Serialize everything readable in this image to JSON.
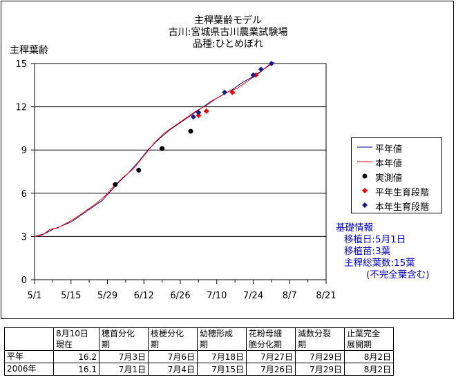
{
  "title_lines": [
    "主稈葉齢モデル",
    "古川:宮城県古川農業試験場",
    "品種:ひとめぼれ"
  ],
  "ylabel": "主稈葉齢",
  "legend": {
    "avg_line": "平年値",
    "cur_line": "本年値",
    "measured": "実測値",
    "avg_stage": "平年生育段階",
    "cur_stage": "本年生育段階"
  },
  "colors": {
    "avg": "#00008b",
    "cur": "#ff0000",
    "measured": "#000000",
    "avg_stage": "#ff0000",
    "cur_stage": "#1a1a8c",
    "info": "#0000cc"
  },
  "info": {
    "heading": "基礎情報",
    "lines": [
      "移植日:5月1日",
      "移植苗:3葉",
      "主稈総葉数:15葉",
      "(不完全葉含む)"
    ]
  },
  "chart_data": {
    "type": "line",
    "x_unit": "days since 5/1",
    "x_ticks": [
      {
        "v": 0,
        "label": "5/1"
      },
      {
        "v": 14,
        "label": "5/15"
      },
      {
        "v": 28,
        "label": "5/29"
      },
      {
        "v": 42,
        "label": "6/12"
      },
      {
        "v": 56,
        "label": "6/26"
      },
      {
        "v": 70,
        "label": "7/10"
      },
      {
        "v": 84,
        "label": "7/24"
      },
      {
        "v": 98,
        "label": "8/7"
      },
      {
        "v": 112,
        "label": "8/21"
      }
    ],
    "xlim": [
      0,
      112
    ],
    "ylim": [
      0,
      15
    ],
    "y_ticks": [
      0,
      3,
      6,
      9,
      12,
      15
    ],
    "grid": "horizontal",
    "legend_position": "right",
    "series": [
      {
        "name": "平年値",
        "x": [
          0,
          4,
          7,
          10,
          14,
          18,
          22,
          26,
          28,
          32,
          36,
          40,
          44,
          48,
          52,
          56,
          60,
          64,
          68,
          72,
          76,
          80,
          84,
          88,
          92
        ],
        "y": [
          3.0,
          3.2,
          3.5,
          3.7,
          4.0,
          4.5,
          5.0,
          5.5,
          5.9,
          6.7,
          7.4,
          8.2,
          9.1,
          9.8,
          10.4,
          10.9,
          11.4,
          11.9,
          12.4,
          12.8,
          13.2,
          13.7,
          14.1,
          14.6,
          15.1
        ]
      },
      {
        "name": "本年値",
        "x": [
          0,
          3,
          6,
          9,
          12,
          15,
          19,
          23,
          27,
          30,
          34,
          38,
          42,
          46,
          50,
          54,
          58,
          62,
          66,
          70,
          74,
          78,
          82,
          86,
          90,
          92
        ],
        "y": [
          3.0,
          3.1,
          3.5,
          3.6,
          3.9,
          4.2,
          4.7,
          5.2,
          5.8,
          6.4,
          7.1,
          7.7,
          8.6,
          9.5,
          10.2,
          10.7,
          11.2,
          11.7,
          12.1,
          12.6,
          13.0,
          13.3,
          13.8,
          14.3,
          14.9,
          15.1
        ]
      }
    ],
    "measured_points": {
      "name": "実測値",
      "x": [
        31,
        40,
        49,
        60
      ],
      "y": [
        6.6,
        7.6,
        9.1,
        10.3
      ]
    },
    "avg_stage_points": {
      "name": "平年生育段階",
      "x": [
        63,
        66,
        76,
        85
      ],
      "y": [
        11.4,
        11.7,
        13.0,
        14.2
      ]
    },
    "cur_stage_points": {
      "name": "本年生育段階",
      "x": [
        61,
        63,
        73,
        84,
        87,
        91
      ],
      "y": [
        11.3,
        11.6,
        13.0,
        14.2,
        14.6,
        15.0
      ]
    }
  },
  "table": {
    "headers": [
      [
        "",
        ""
      ],
      [
        "8月10日",
        "現在"
      ],
      [
        "穂首分化",
        "期"
      ],
      [
        "枝梗分化",
        "期"
      ],
      [
        "幼穂形成",
        "期"
      ],
      [
        "花粉母細",
        "胞分化期"
      ],
      [
        "減数分裂",
        "期"
      ],
      [
        "止葉完全",
        "展開期"
      ]
    ],
    "rows": [
      [
        "平年",
        "16.2",
        "7月3日",
        "7月6日",
        "7月18日",
        "7月27日",
        "7月29日",
        "8月2日"
      ],
      [
        "2006年",
        "16.1",
        "7月1日",
        "7月4日",
        "7月15日",
        "7月26日",
        "7月29日",
        "8月2日"
      ]
    ]
  }
}
